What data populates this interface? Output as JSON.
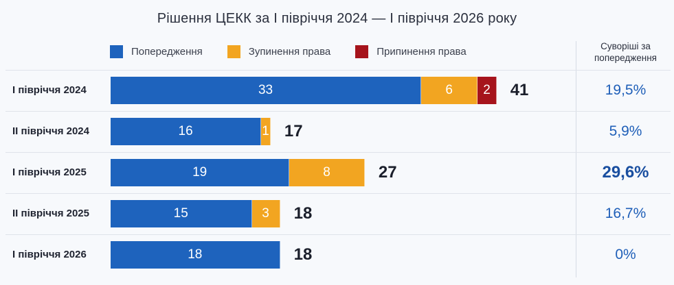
{
  "chart_data": {
    "type": "bar",
    "orientation": "horizontal",
    "stacked": true,
    "title": "Рішення ЦЕКК за І півріччя 2024 — І півріччя 2026 року",
    "categories": [
      "І півріччя 2024",
      "ІІ півріччя 2024",
      "І півріччя 2025",
      "ІІ півріччя 2025",
      "І півріччя 2026"
    ],
    "series": [
      {
        "name": "Попередження",
        "color": "#1e63bd",
        "values": [
          33,
          16,
          19,
          15,
          18
        ]
      },
      {
        "name": "Зупинення права",
        "color": "#f2a521",
        "values": [
          6,
          1,
          8,
          3,
          0
        ]
      },
      {
        "name": "Припинення права",
        "color": "#a6141c",
        "values": [
          2,
          0,
          0,
          0,
          0
        ]
      }
    ],
    "totals": [
      "41",
      "17",
      "27",
      "18",
      "18"
    ],
    "side_column": {
      "header": "Суворіші за попередження",
      "values": [
        "19,5%",
        "5,9%",
        "29,6%",
        "16,7%",
        "0%"
      ],
      "highlight_index": 2
    },
    "legend_position": "top",
    "grid": false
  }
}
